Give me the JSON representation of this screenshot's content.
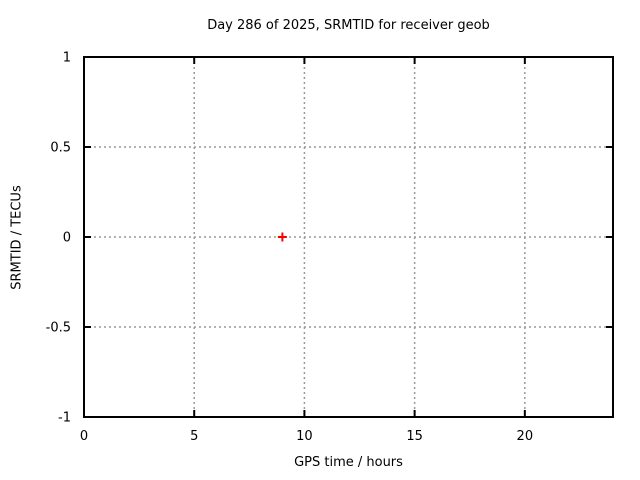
{
  "chart_data": {
    "type": "scatter",
    "title": "Day 286 of 2025, SRMTID for receiver geob",
    "xlabel": "GPS time / hours",
    "ylabel": "SRMTID / TECUs",
    "xlim": [
      0,
      24
    ],
    "ylim": [
      -1,
      1
    ],
    "xticks": [
      {
        "value": 0,
        "label": "0"
      },
      {
        "value": 5,
        "label": "5"
      },
      {
        "value": 10,
        "label": "10"
      },
      {
        "value": 15,
        "label": "15"
      },
      {
        "value": 20,
        "label": "20"
      }
    ],
    "yticks": [
      {
        "value": -1,
        "label": "-1"
      },
      {
        "value": -0.5,
        "label": "-0.5"
      },
      {
        "value": 0,
        "label": "0"
      },
      {
        "value": 0.5,
        "label": "0.5"
      },
      {
        "value": 1,
        "label": "1"
      }
    ],
    "grid": "dotted",
    "legend": "none",
    "series": [
      {
        "marker": "plus",
        "color": "#ff0000",
        "points": [
          {
            "x": 9,
            "y": 0
          }
        ]
      }
    ],
    "colors": {
      "background": "#ffffff",
      "border": "#000000",
      "text": "#000000",
      "grid": "#999999"
    }
  }
}
